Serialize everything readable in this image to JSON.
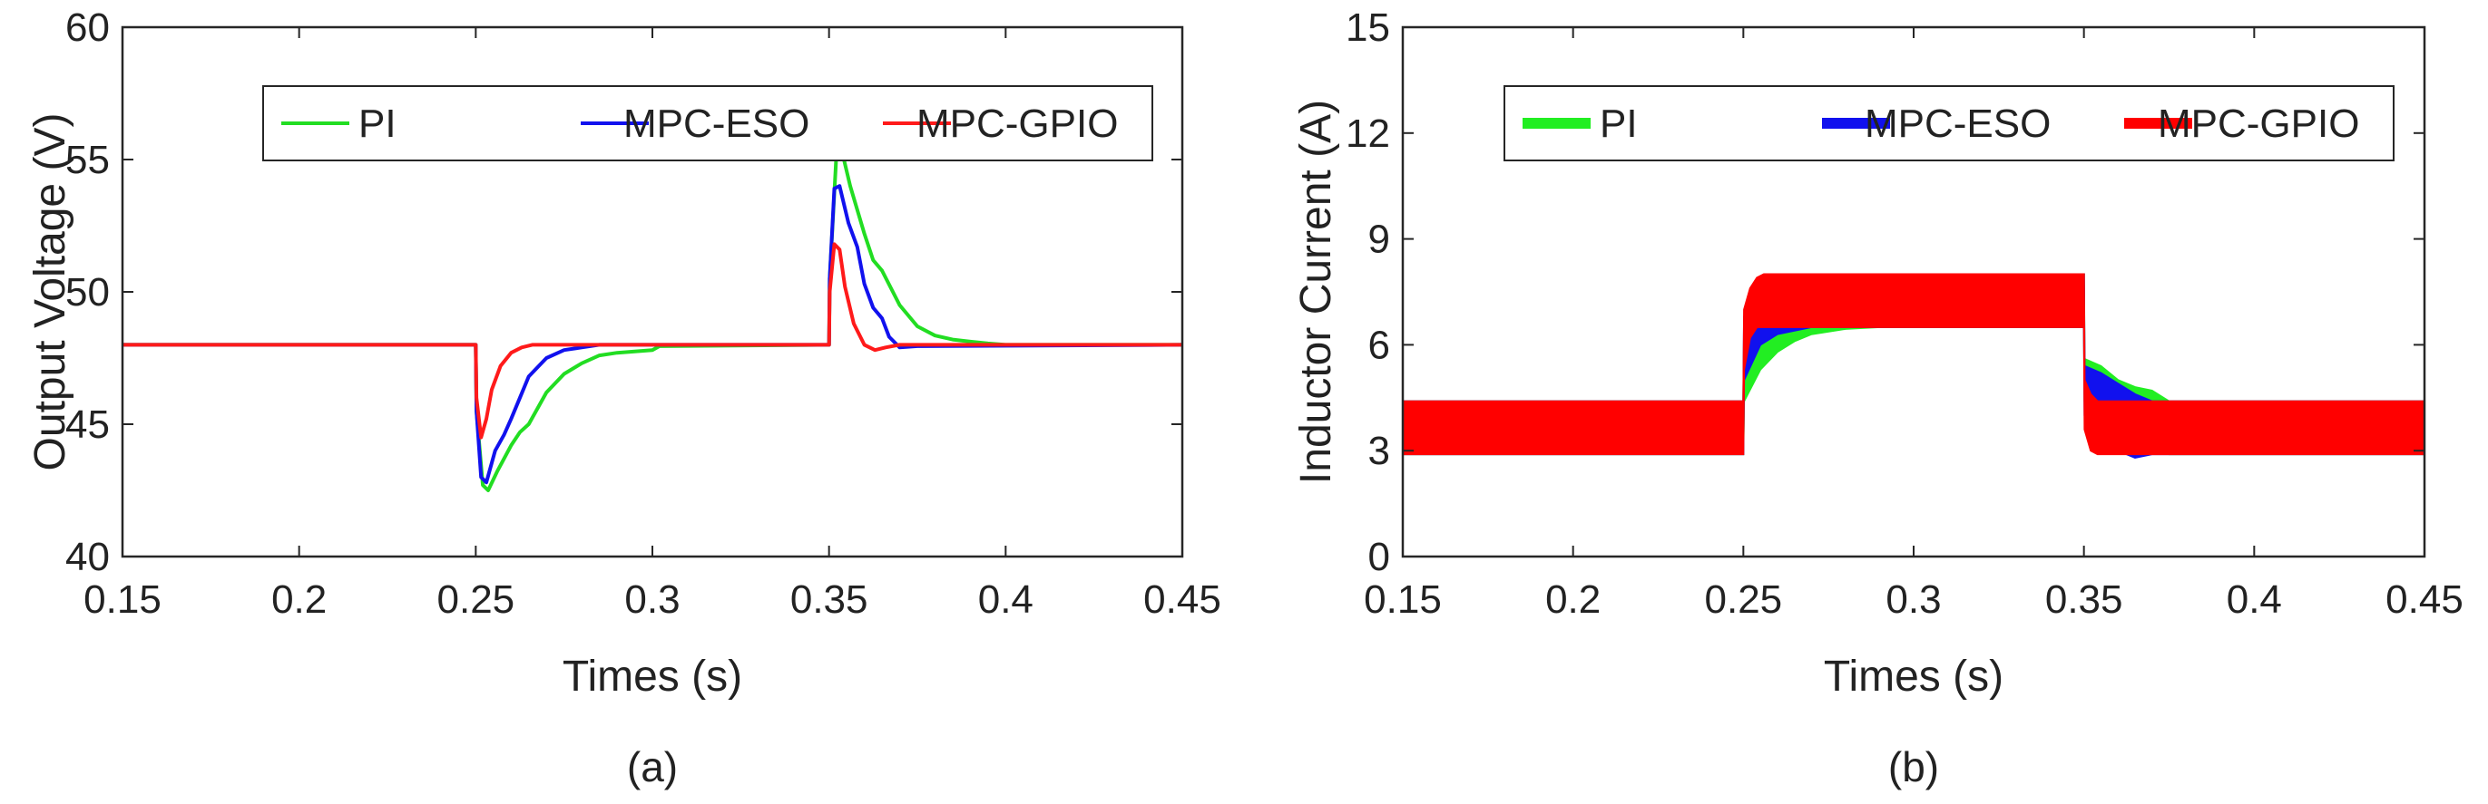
{
  "chart_data": [
    {
      "type": "line",
      "panel_label": "(a)",
      "xlabel": "Times (s)",
      "ylabel": "Output Voltage (V)",
      "xlim": [
        0.15,
        0.45
      ],
      "ylim": [
        40,
        60
      ],
      "xticks": [
        "0.15",
        "0.2",
        "0.25",
        "0.3",
        "0.35",
        "0.4",
        "0.45"
      ],
      "yticks": [
        "40",
        "45",
        "50",
        "55",
        "60"
      ],
      "legend_position": "top-right",
      "series": [
        {
          "name": "PI",
          "color": "#22dd22",
          "x": [
            0.15,
            0.25,
            0.2502,
            0.252,
            0.2535,
            0.256,
            0.26,
            0.2625,
            0.265,
            0.27,
            0.275,
            0.28,
            0.285,
            0.29,
            0.295,
            0.3,
            0.302,
            0.35,
            0.3502,
            0.352,
            0.3535,
            0.356,
            0.36,
            0.3625,
            0.365,
            0.37,
            0.375,
            0.38,
            0.385,
            0.39,
            0.395,
            0.4,
            0.45
          ],
          "y": [
            48,
            48,
            45.5,
            42.7,
            42.5,
            43.2,
            44.2,
            44.7,
            45.0,
            46.2,
            46.9,
            47.3,
            47.6,
            47.7,
            47.75,
            47.8,
            47.95,
            48,
            50.5,
            55.0,
            55.4,
            54.0,
            52.2,
            51.2,
            50.8,
            49.5,
            48.7,
            48.35,
            48.2,
            48.12,
            48.05,
            48.0,
            48
          ]
        },
        {
          "name": "MPC-ESO",
          "color": "#1111ee",
          "x": [
            0.15,
            0.25,
            0.2502,
            0.2515,
            0.253,
            0.2555,
            0.258,
            0.26,
            0.2625,
            0.265,
            0.27,
            0.275,
            0.28,
            0.285,
            0.35,
            0.3502,
            0.3515,
            0.353,
            0.3555,
            0.358,
            0.36,
            0.3625,
            0.365,
            0.367,
            0.37,
            0.375,
            0.45
          ],
          "y": [
            48,
            48,
            45.5,
            43.0,
            42.8,
            44.0,
            44.6,
            45.2,
            46.0,
            46.8,
            47.5,
            47.8,
            47.9,
            48.0,
            48,
            50.5,
            53.9,
            54.0,
            52.6,
            51.7,
            50.3,
            49.4,
            49.0,
            48.3,
            47.9,
            47.95,
            48
          ]
        },
        {
          "name": "MPC-GPIO",
          "color": "#ff1a1a",
          "x": [
            0.15,
            0.25,
            0.2502,
            0.2515,
            0.253,
            0.2545,
            0.257,
            0.26,
            0.263,
            0.266,
            0.27,
            0.275,
            0.35,
            0.3502,
            0.3515,
            0.353,
            0.3545,
            0.357,
            0.36,
            0.363,
            0.366,
            0.37,
            0.375,
            0.45
          ],
          "y": [
            48,
            48,
            46.0,
            44.5,
            45.2,
            46.3,
            47.2,
            47.7,
            47.9,
            48.0,
            48.0,
            48.0,
            48,
            50.0,
            51.8,
            51.6,
            50.2,
            48.8,
            48.0,
            47.8,
            47.9,
            48.0,
            48.0,
            48
          ]
        }
      ]
    },
    {
      "type": "area",
      "panel_label": "(b)",
      "xlabel": "Times (s)",
      "ylabel": "Inductor Current (A)",
      "xlim": [
        0.15,
        0.45
      ],
      "ylim": [
        0,
        15
      ],
      "xticks": [
        "0.15",
        "0.2",
        "0.25",
        "0.3",
        "0.35",
        "0.4",
        "0.45"
      ],
      "yticks": [
        "0",
        "3",
        "6",
        "9",
        "12",
        "15"
      ],
      "legend_position": "top-right",
      "series": [
        {
          "name": "PI",
          "color": "#22ee22",
          "x": [
            0.15,
            0.25,
            0.2502,
            0.255,
            0.26,
            0.265,
            0.27,
            0.28,
            0.29,
            0.3,
            0.35,
            0.3502,
            0.355,
            0.36,
            0.365,
            0.37,
            0.375,
            0.45
          ],
          "y_upper": [
            4.4,
            4.4,
            6.4,
            7.2,
            7.6,
            7.8,
            8.0,
            8.0,
            8.0,
            8.0,
            8.0,
            5.6,
            5.4,
            5.0,
            4.8,
            4.7,
            4.4,
            4.4
          ],
          "y_lower": [
            2.9,
            2.9,
            4.4,
            5.3,
            5.8,
            6.1,
            6.3,
            6.45,
            6.5,
            6.5,
            6.5,
            4.4,
            3.8,
            3.4,
            3.3,
            3.0,
            2.9,
            2.9
          ]
        },
        {
          "name": "MPC-ESO",
          "color": "#1111ee",
          "x": [
            0.15,
            0.25,
            0.2502,
            0.255,
            0.26,
            0.265,
            0.27,
            0.28,
            0.3,
            0.35,
            0.3502,
            0.355,
            0.36,
            0.365,
            0.37,
            0.45
          ],
          "y_upper": [
            4.4,
            4.4,
            6.8,
            7.6,
            7.9,
            8.0,
            8.0,
            8.0,
            8.0,
            8.0,
            5.4,
            5.2,
            4.9,
            4.6,
            4.4,
            4.4
          ],
          "y_lower": [
            2.9,
            2.9,
            5.0,
            6.0,
            6.3,
            6.4,
            6.5,
            6.5,
            6.5,
            6.5,
            4.0,
            3.4,
            3.0,
            2.8,
            2.9,
            2.9
          ]
        },
        {
          "name": "MPC-GPIO",
          "color": "#ff0000",
          "x": [
            0.15,
            0.25,
            0.2502,
            0.252,
            0.254,
            0.256,
            0.26,
            0.3,
            0.35,
            0.3502,
            0.352,
            0.354,
            0.356,
            0.36,
            0.45
          ],
          "y_upper": [
            4.4,
            4.4,
            7.0,
            7.6,
            7.9,
            8.0,
            8.0,
            8.0,
            8.0,
            5.0,
            4.6,
            4.4,
            4.4,
            4.4,
            4.4
          ],
          "y_lower": [
            2.9,
            2.9,
            5.3,
            6.2,
            6.5,
            6.5,
            6.5,
            6.5,
            6.5,
            3.6,
            3.0,
            2.9,
            2.9,
            2.9,
            2.9
          ]
        }
      ]
    }
  ]
}
